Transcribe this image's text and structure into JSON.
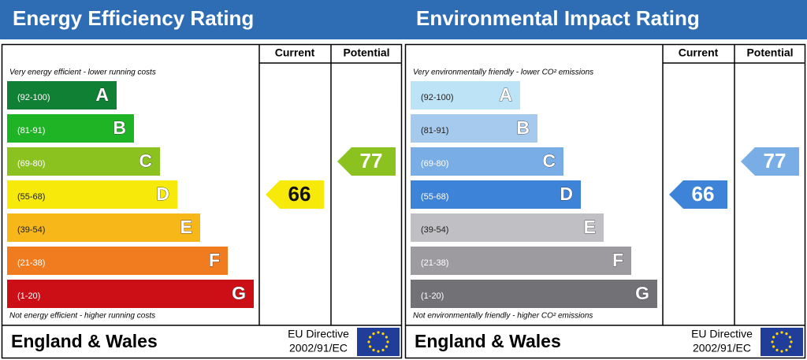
{
  "panels": [
    {
      "title": "Energy Efficiency Rating",
      "columns": [
        "Current",
        "Potential"
      ],
      "top_note": "Very energy efficient - lower running costs",
      "bottom_note": "Not energy efficient - higher running costs",
      "bands": [
        {
          "range": "(92-100)",
          "letter": "A",
          "color": "#0f8034"
        },
        {
          "range": "(81-91)",
          "letter": "B",
          "color": "#1fb426"
        },
        {
          "range": "(69-80)",
          "letter": "C",
          "color": "#8cc21f"
        },
        {
          "range": "(55-68)",
          "letter": "D",
          "color": "#f7ea0a"
        },
        {
          "range": "(39-54)",
          "letter": "E",
          "color": "#f7b719"
        },
        {
          "range": "(21-38)",
          "letter": "F",
          "color": "#f07c1f"
        },
        {
          "range": "(1-20)",
          "letter": "G",
          "color": "#cc0e16"
        }
      ],
      "current": 66,
      "potential": 77,
      "region": "England & Wales",
      "directive": "EU Directive",
      "directive_code": "2002/91/EC"
    },
    {
      "title": "Environmental Impact Rating",
      "columns": [
        "Current",
        "Potential"
      ],
      "top_note": "Very environmentally friendly - lower CO² emissions",
      "bottom_note": "Not environmentally friendly - higher CO² emissions",
      "bands": [
        {
          "range": "(92-100)",
          "letter": "A",
          "color": "#bde3f7"
        },
        {
          "range": "(81-91)",
          "letter": "B",
          "color": "#a6c9ee"
        },
        {
          "range": "(69-80)",
          "letter": "C",
          "color": "#78ade6"
        },
        {
          "range": "(55-68)",
          "letter": "D",
          "color": "#3d84d9"
        },
        {
          "range": "(39-54)",
          "letter": "E",
          "color": "#c0bfc3"
        },
        {
          "range": "(21-38)",
          "letter": "F",
          "color": "#9d9ba0"
        },
        {
          "range": "(1-20)",
          "letter": "G",
          "color": "#727176"
        }
      ],
      "current": 66,
      "potential": 77,
      "region": "England & Wales",
      "directive": "EU Directive",
      "directive_code": "2002/91/EC"
    }
  ]
}
